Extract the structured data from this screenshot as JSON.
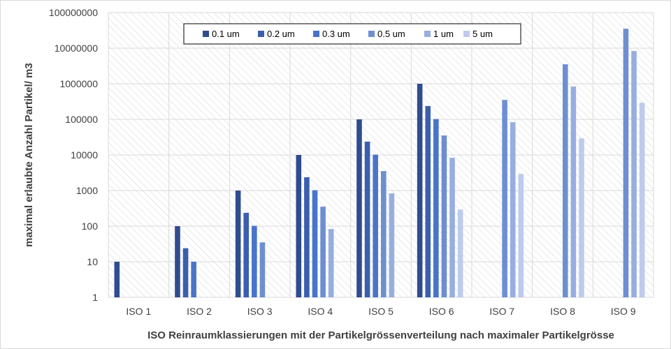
{
  "chart_data": {
    "type": "bar",
    "title": "",
    "xlabel": "ISO Reinraumklassierungen mit der Partikelgrössenverteilung nach maximaler Partikelgrösse",
    "ylabel": "maximal  erlaubte Anzahl Partikel/ m3",
    "yscale": "log",
    "ylim": [
      1,
      100000000
    ],
    "yticks": [
      "1",
      "10",
      "100",
      "1000",
      "10000",
      "100000",
      "1000000",
      "10000000",
      "100000000"
    ],
    "grid": true,
    "legend_position": "top",
    "categories": [
      "ISO 1",
      "ISO 2",
      "ISO 3",
      "ISO 4",
      "ISO 5",
      "ISO 6",
      "ISO 7",
      "ISO 8",
      "ISO 9"
    ],
    "series": [
      {
        "name": "0.1 um",
        "color": "#2f4c8f",
        "values": [
          10,
          100,
          1000,
          10000,
          100000,
          1000000,
          null,
          null,
          null
        ]
      },
      {
        "name": "0.2 um",
        "color": "#3b5fae",
        "values": [
          null,
          24,
          237,
          2370,
          23700,
          237000,
          null,
          null,
          null
        ]
      },
      {
        "name": "0.3 um",
        "color": "#4874c9",
        "values": [
          null,
          10,
          102,
          1020,
          10200,
          102000,
          null,
          null,
          null
        ]
      },
      {
        "name": "0.5 um",
        "color": "#6d8fd2",
        "values": [
          null,
          null,
          35,
          352,
          3520,
          35200,
          352000,
          3520000,
          35200000
        ]
      },
      {
        "name": "1 um",
        "color": "#97aedf",
        "values": [
          null,
          null,
          null,
          83,
          832,
          8320,
          83200,
          832000,
          8320000
        ]
      },
      {
        "name": "5 um",
        "color": "#bdcbec",
        "values": [
          null,
          null,
          null,
          null,
          null,
          293,
          2930,
          29300,
          293000
        ]
      }
    ]
  }
}
